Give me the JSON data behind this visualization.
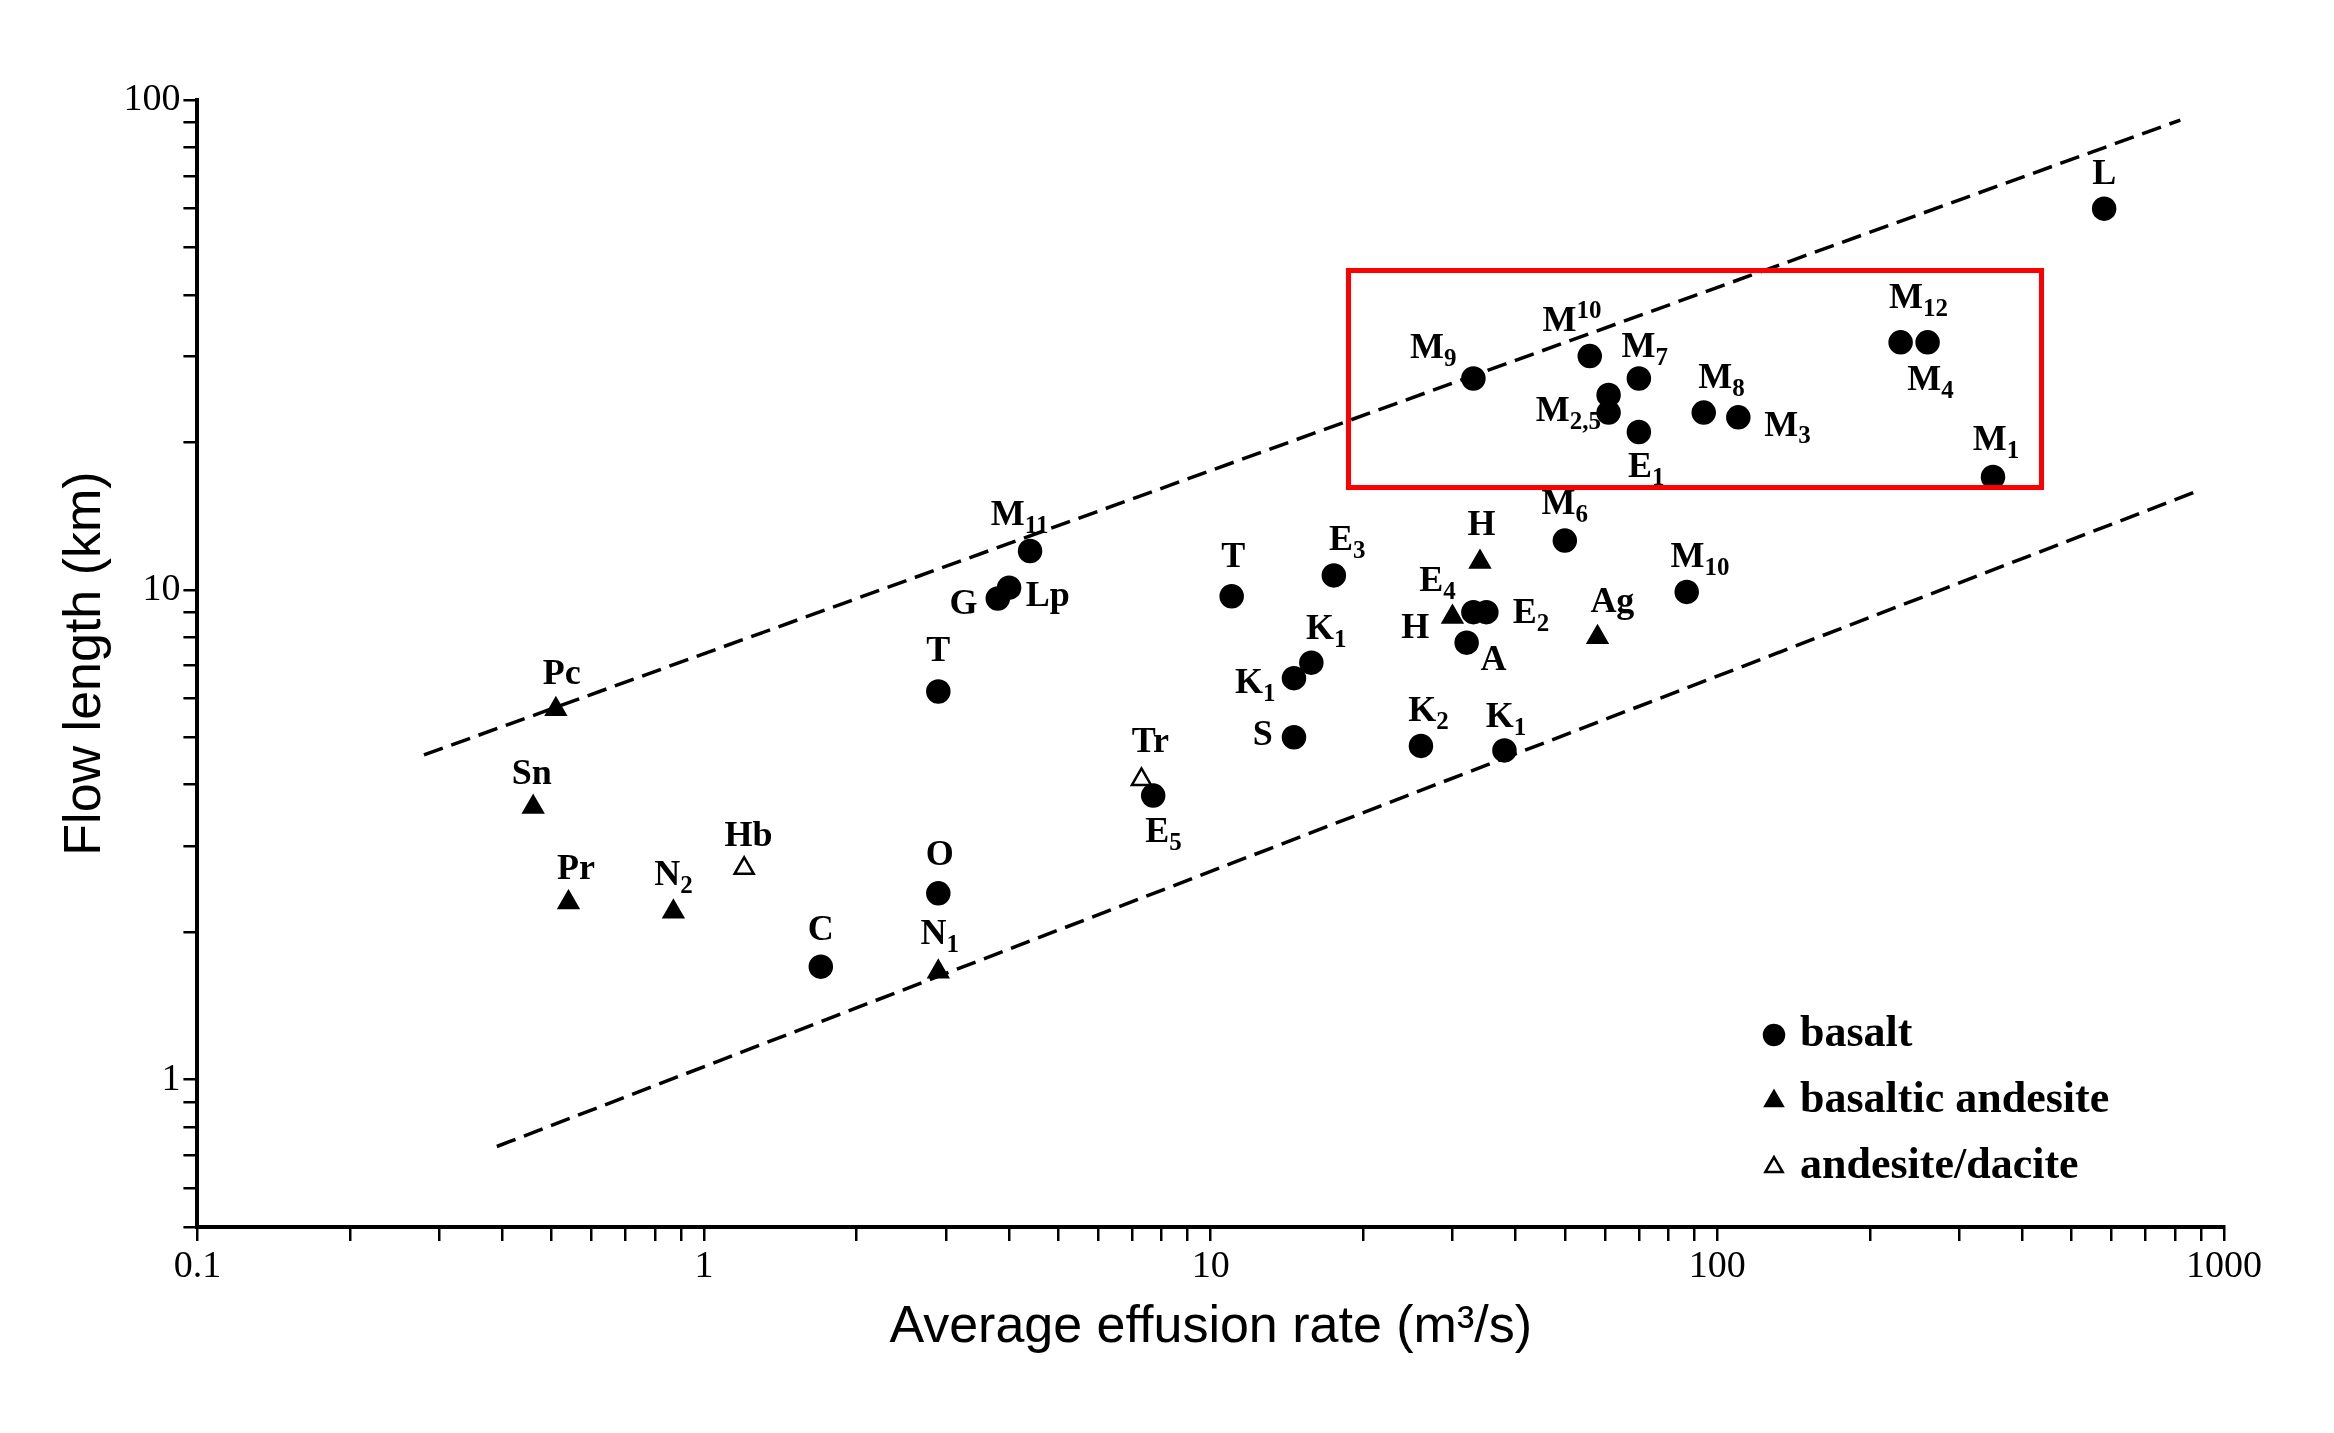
{
  "chart_data": {
    "type": "scatter",
    "xlabel": "Average effusion rate (m³/s)",
    "ylabel": "Flow length (km)",
    "log": "xy",
    "grid": false,
    "legend": "bottom right",
    "xlim": [
      0.1,
      1000
    ],
    "ylim": [
      0.5,
      100
    ],
    "xticks": [
      0.1,
      {
        "value": 0.2,
        "label": null
      },
      {
        "value": 0.3,
        "label": null
      },
      {
        "value": 0.4,
        "label": null
      },
      {
        "value": 0.5,
        "label": null
      },
      {
        "value": 0.6,
        "label": null
      },
      {
        "value": 0.7,
        "label": null
      },
      {
        "value": 0.8,
        "label": null
      },
      {
        "value": 0.9,
        "label": null
      },
      1,
      {
        "value": 2,
        "label": null
      },
      {
        "value": 3,
        "label": null
      },
      {
        "value": 4,
        "label": null
      },
      {
        "value": 5,
        "label": null
      },
      {
        "value": 6,
        "label": null
      },
      {
        "value": 7,
        "label": null
      },
      {
        "value": 8,
        "label": null
      },
      {
        "value": 9,
        "label": null
      },
      10,
      {
        "value": 20,
        "label": null
      },
      {
        "value": 30,
        "label": null
      },
      {
        "value": 40,
        "label": null
      },
      {
        "value": 50,
        "label": null
      },
      {
        "value": 60,
        "label": null
      },
      {
        "value": 70,
        "label": null
      },
      {
        "value": 80,
        "label": null
      },
      {
        "value": 90,
        "label": null
      },
      100,
      {
        "value": 200,
        "label": null
      },
      {
        "value": 300,
        "label": null
      },
      {
        "value": 400,
        "label": null
      },
      {
        "value": 500,
        "label": null
      },
      {
        "value": 600,
        "label": null
      },
      {
        "value": 700,
        "label": null
      },
      {
        "value": 800,
        "label": null
      },
      {
        "value": 900,
        "label": null
      },
      1000
    ],
    "yticks": [
      {
        "value": 0.5,
        "label": null
      },
      {
        "value": 0.6,
        "label": null
      },
      {
        "value": 0.7,
        "label": null
      },
      {
        "value": 0.8,
        "label": null
      },
      {
        "value": 0.9,
        "label": null
      },
      1,
      {
        "value": 2,
        "label": null
      },
      {
        "value": 3,
        "label": null
      },
      {
        "value": 4,
        "label": null
      },
      {
        "value": 5,
        "label": null
      },
      {
        "value": 6,
        "label": null
      },
      {
        "value": 7,
        "label": null
      },
      {
        "value": 8,
        "label": null
      },
      {
        "value": 9,
        "label": null
      },
      10,
      {
        "value": 20,
        "label": null
      },
      {
        "value": 30,
        "label": null
      },
      {
        "value": 40,
        "label": null
      },
      {
        "value": 50,
        "label": null
      },
      {
        "value": 60,
        "label": null
      },
      {
        "value": 70,
        "label": null
      },
      {
        "value": 80,
        "label": null
      },
      {
        "value": 90,
        "label": null
      },
      100
    ],
    "series": [
      {
        "name": "basalt",
        "color": "#000000",
        "marker": "circle",
        "x": [
          580,
          230,
          260,
          350,
          33,
          56,
          70,
          61,
          61,
          70,
          94,
          110,
          50,
          87,
          4.4,
          4.0,
          3.8,
          11,
          17.5,
          15.8,
          14.6,
          14.6,
          2.9,
          33,
          35,
          32,
          26,
          38,
          7.7,
          2.9,
          1.7
        ],
        "values": [
          60,
          32,
          32,
          17,
          27,
          30,
          27,
          25,
          23,
          21,
          23,
          22.5,
          12.6,
          9.9,
          12,
          10.1,
          9.6,
          9.7,
          10.7,
          7.1,
          6.6,
          5.0,
          6.2,
          9.0,
          9.0,
          7.8,
          4.8,
          4.7,
          3.8,
          2.4,
          1.7
        ]
      },
      {
        "name": "basaltic andesite",
        "color": "#000000",
        "marker": "triangle",
        "x": [
          0.51,
          0.46,
          0.54,
          0.87,
          2.9,
          34,
          30,
          58
        ],
        "values": [
          5.7,
          3.6,
          2.3,
          2.2,
          1.66,
          11.4,
          8.8,
          8.0
        ]
      },
      {
        "name": "andesite/dacite",
        "color": "#ffffff",
        "marker": "triangle",
        "x": [
          1.2,
          7.3
        ],
        "values": [
          2.7,
          4.1
        ]
      },
      {
        "type": "line",
        "color": "#000000",
        "marker": "none",
        "line_style": "dashed",
        "x": [
          0.28,
          820
        ],
        "values": [
          4.6,
          91
        ]
      },
      {
        "type": "line",
        "color": "#000000",
        "marker": "none",
        "line_style": "dashed",
        "x": [
          0.39,
          900
        ],
        "values": [
          0.73,
          16
        ]
      }
    ],
    "annotations": [
      {
        "text": "L",
        "x": 580,
        "y": 60
      },
      {
        "text": "M$_{12}$",
        "x": 230,
        "y": 32
      },
      {
        "text": "M$_{4}$",
        "x": 260,
        "y": 32
      },
      {
        "text": "M$_{1}$",
        "x": 350,
        "y": 17
      },
      {
        "text": "M$_{9}$",
        "x": 33,
        "y": 27
      },
      {
        "text": "M$^{10}$",
        "x": 56,
        "y": 30
      },
      {
        "text": "M$_{7}$",
        "x": 70,
        "y": 27
      },
      {
        "text": "M$_{2,5}$",
        "x": 61,
        "y": 25
      },
      {
        "text": "E$_{1}$",
        "x": 70,
        "y": 21
      },
      {
        "text": "M$_{8}$",
        "x": 94,
        "y": 23
      },
      {
        "text": "M$_{3}$",
        "x": 110,
        "y": 22.5
      },
      {
        "text": "M$_{6}$",
        "x": 50,
        "y": 12.6
      },
      {
        "text": "M$_{10}$",
        "x": 87,
        "y": 9.9
      },
      {
        "text": "M$_{11}$",
        "x": 4.4,
        "y": 12
      },
      {
        "text": "Lp",
        "x": 4.0,
        "y": 10.1
      },
      {
        "text": "G",
        "x": 3.8,
        "y": 9.6
      },
      {
        "text": "T",
        "x": 11,
        "y": 9.7
      },
      {
        "text": "E$_{3}$",
        "x": 17.5,
        "y": 10.7
      },
      {
        "text": "K$_{1}$",
        "x": 15.8,
        "y": 7.1
      },
      {
        "text": "K$_{1}$",
        "x": 14.6,
        "y": 6.6
      },
      {
        "text": "S",
        "x": 14.6,
        "y": 5.0
      },
      {
        "text": "T",
        "x": 2.9,
        "y": 6.2
      },
      {
        "text": "E$_{2}$",
        "x": 35,
        "y": 9.0
      },
      {
        "text": "A",
        "x": 32,
        "y": 7.8
      },
      {
        "text": "K$_{2}$",
        "x": 26,
        "y": 4.8
      },
      {
        "text": "K$_{1}$",
        "x": 38,
        "y": 4.7
      },
      {
        "text": "E$_{5}$",
        "x": 7.7,
        "y": 3.8
      },
      {
        "text": "O",
        "x": 2.9,
        "y": 2.4
      },
      {
        "text": "C",
        "x": 1.7,
        "y": 1.7
      },
      {
        "text": "Pc",
        "x": 0.51,
        "y": 5.7
      },
      {
        "text": "Sn",
        "x": 0.46,
        "y": 3.6
      },
      {
        "text": "Pr",
        "x": 0.54,
        "y": 2.3
      },
      {
        "text": "N$_{2}$",
        "x": 0.87,
        "y": 2.2
      },
      {
        "text": "N$_{1}$",
        "x": 2.9,
        "y": 1.66
      },
      {
        "text": "H",
        "x": 34,
        "y": 11.4
      },
      {
        "text": "E$_{4}$",
        "x": 30,
        "y": 8.8
      },
      {
        "text": "H",
        "x": 30,
        "y": 8.8
      },
      {
        "text": "Ag",
        "x": 58,
        "y": 8.0
      },
      {
        "text": "Hb",
        "x": 1.2,
        "y": 2.7
      },
      {
        "text": "Tr",
        "x": 7.3,
        "y": 4.1
      }
    ]
  }
}
